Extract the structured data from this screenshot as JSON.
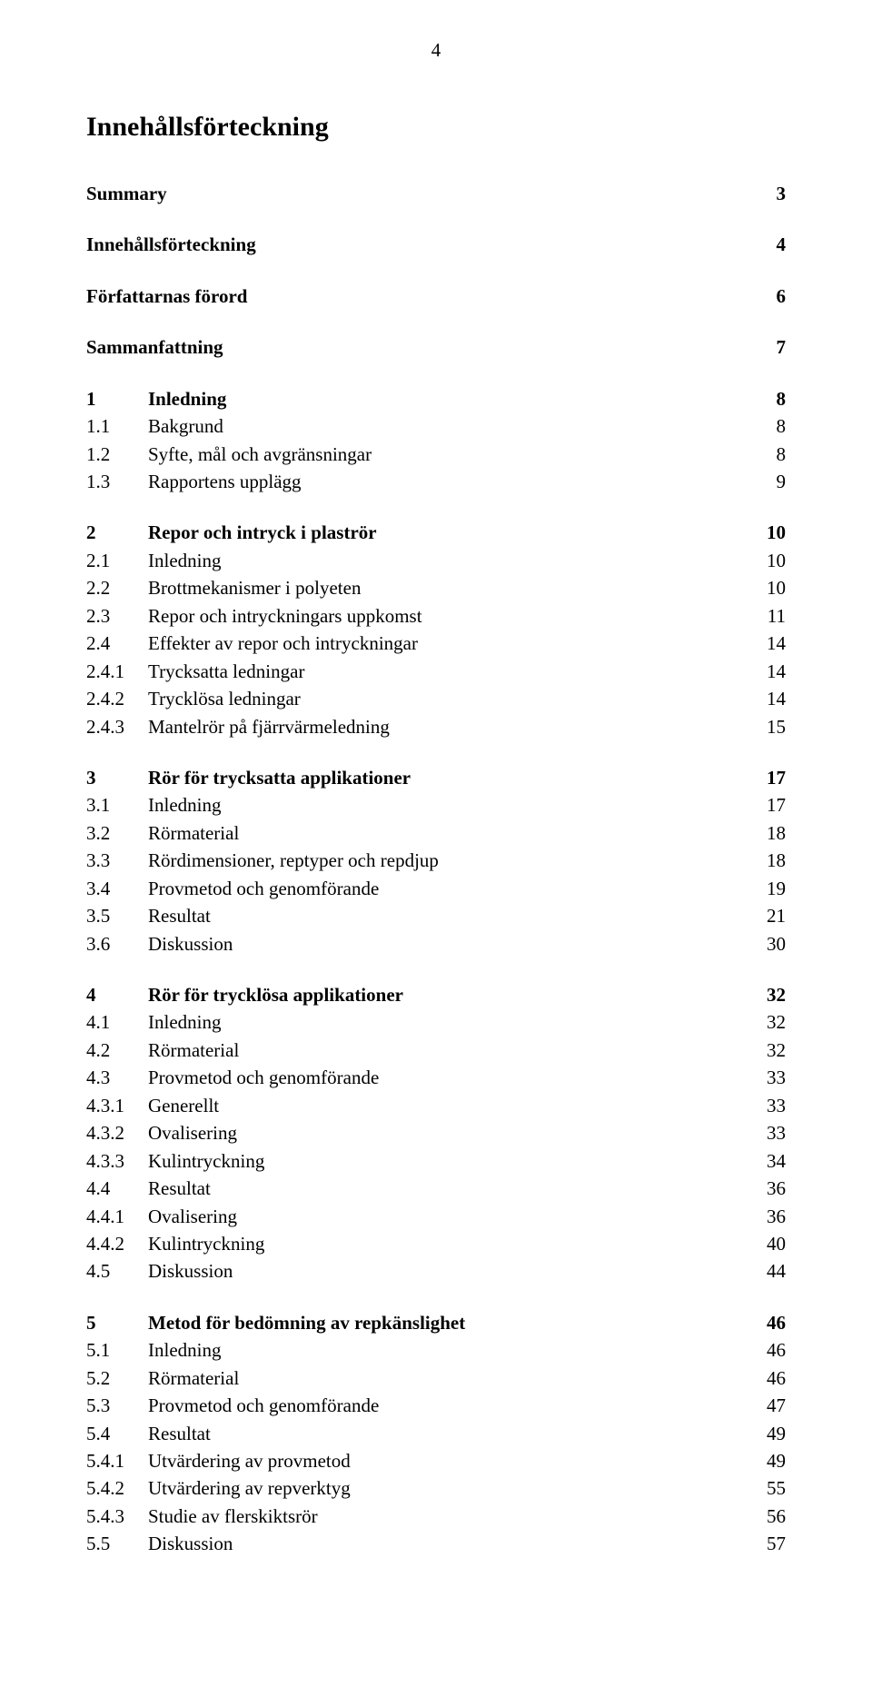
{
  "page_number_top": "4",
  "doc_title": "Innehållsförteckning",
  "groups": [
    {
      "rows": [
        {
          "num": "",
          "label": "Summary",
          "page": "3",
          "bold_label": true,
          "bold_page": true,
          "w": "w0"
        }
      ]
    },
    {
      "rows": [
        {
          "num": "",
          "label": "Innehållsförteckning",
          "page": "4",
          "bold_label": true,
          "bold_page": true,
          "w": "w0"
        }
      ]
    },
    {
      "rows": [
        {
          "num": "",
          "label": "Författarnas förord",
          "page": "6",
          "bold_label": true,
          "bold_page": true,
          "w": "w0"
        }
      ]
    },
    {
      "rows": [
        {
          "num": "",
          "label": "Sammanfattning",
          "page": "7",
          "bold_label": true,
          "bold_page": true,
          "w": "w0"
        }
      ]
    },
    {
      "rows": [
        {
          "num": "1",
          "label": "Inledning",
          "page": "8",
          "sec": true,
          "w": "w1"
        },
        {
          "num": "1.1",
          "label": "Bakgrund",
          "page": "8",
          "w": "w2"
        },
        {
          "num": "1.2",
          "label": "Syfte, mål och avgränsningar",
          "page": "8",
          "w": "w2"
        },
        {
          "num": "1.3",
          "label": "Rapportens upplägg",
          "page": "9",
          "w": "w2"
        }
      ]
    },
    {
      "rows": [
        {
          "num": "2",
          "label": "Repor och intryck i plaströr",
          "page": "10",
          "sec": true,
          "w": "w1"
        },
        {
          "num": "2.1",
          "label": "Inledning",
          "page": "10",
          "w": "w2"
        },
        {
          "num": "2.2",
          "label": "Brottmekanismer i polyeten",
          "page": "10",
          "w": "w2"
        },
        {
          "num": "2.3",
          "label": "Repor och intryckningars uppkomst",
          "page": "11",
          "w": "w2"
        },
        {
          "num": "2.4",
          "label": "Effekter av repor och intryckningar",
          "page": "14",
          "w": "w2"
        },
        {
          "num": "2.4.1",
          "label": "Trycksatta ledningar",
          "page": "14",
          "w": "w3"
        },
        {
          "num": "2.4.2",
          "label": "Trycklösa ledningar",
          "page": "14",
          "w": "w3"
        },
        {
          "num": "2.4.3",
          "label": "Mantelrör på fjärrvärmeledning",
          "page": "15",
          "w": "w3"
        }
      ]
    },
    {
      "rows": [
        {
          "num": "3",
          "label": "Rör för trycksatta applikationer",
          "page": "17",
          "sec": true,
          "w": "w1"
        },
        {
          "num": "3.1",
          "label": "Inledning",
          "page": "17",
          "w": "w2"
        },
        {
          "num": "3.2",
          "label": "Rörmaterial",
          "page": "18",
          "w": "w2"
        },
        {
          "num": "3.3",
          "label": "Rördimensioner, reptyper och repdjup",
          "page": "18",
          "w": "w2"
        },
        {
          "num": "3.4",
          "label": "Provmetod och genomförande",
          "page": "19",
          "w": "w2"
        },
        {
          "num": "3.5",
          "label": "Resultat",
          "page": "21",
          "w": "w2"
        },
        {
          "num": "3.6",
          "label": "Diskussion",
          "page": "30",
          "w": "w2"
        }
      ]
    },
    {
      "rows": [
        {
          "num": "4",
          "label": "Rör för trycklösa applikationer",
          "page": "32",
          "sec": true,
          "w": "w1"
        },
        {
          "num": "4.1",
          "label": "Inledning",
          "page": "32",
          "w": "w2"
        },
        {
          "num": "4.2",
          "label": "Rörmaterial",
          "page": "32",
          "w": "w2"
        },
        {
          "num": "4.3",
          "label": "Provmetod och genomförande",
          "page": "33",
          "w": "w2"
        },
        {
          "num": "4.3.1",
          "label": "Generellt",
          "page": "33",
          "w": "w3"
        },
        {
          "num": "4.3.2",
          "label": "Ovalisering",
          "page": "33",
          "w": "w3"
        },
        {
          "num": "4.3.3",
          "label": "Kulintryckning",
          "page": "34",
          "w": "w3"
        },
        {
          "num": "4.4",
          "label": "Resultat",
          "page": "36",
          "w": "w2"
        },
        {
          "num": "4.4.1",
          "label": "Ovalisering",
          "page": "36",
          "w": "w3"
        },
        {
          "num": "4.4.2",
          "label": "Kulintryckning",
          "page": "40",
          "w": "w3"
        },
        {
          "num": "4.5",
          "label": "Diskussion",
          "page": "44",
          "w": "w2"
        }
      ]
    },
    {
      "rows": [
        {
          "num": "5",
          "label": "Metod för bedömning av repkänslighet",
          "page": "46",
          "sec": true,
          "w": "w1"
        },
        {
          "num": "5.1",
          "label": "Inledning",
          "page": "46",
          "w": "w2"
        },
        {
          "num": "5.2",
          "label": "Rörmaterial",
          "page": "46",
          "w": "w2"
        },
        {
          "num": "5.3",
          "label": "Provmetod och genomförande",
          "page": "47",
          "w": "w2"
        },
        {
          "num": "5.4",
          "label": "Resultat",
          "page": "49",
          "w": "w2"
        },
        {
          "num": "5.4.1",
          "label": "Utvärdering av provmetod",
          "page": "49",
          "w": "w3"
        },
        {
          "num": "5.4.2",
          "label": "Utvärdering av repverktyg",
          "page": "55",
          "w": "w3"
        },
        {
          "num": "5.4.3",
          "label": "Studie av flerskiktsrör",
          "page": "56",
          "w": "w3"
        },
        {
          "num": "5.5",
          "label": "Diskussion",
          "page": "57",
          "w": "w2"
        }
      ]
    }
  ]
}
